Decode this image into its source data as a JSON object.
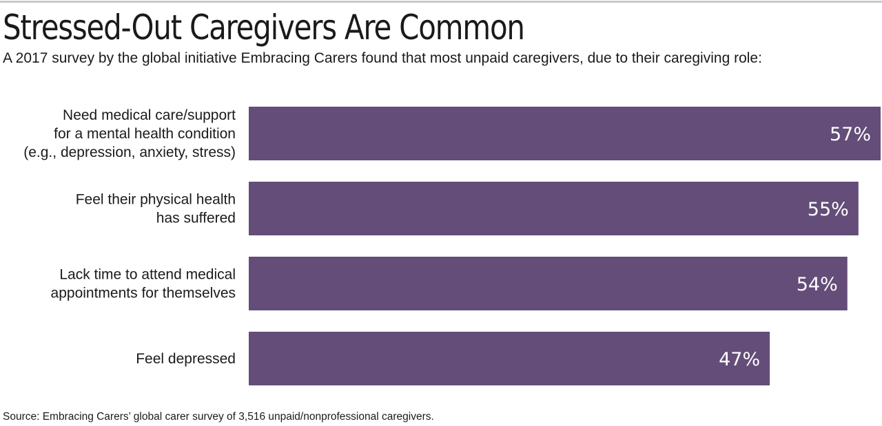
{
  "title": "Stressed-Out Caregivers Are Common",
  "subtitle": "A 2017 survey by the global initiative Embracing Carers found that most unpaid caregivers, due to their caregiving role:",
  "source": "Source: Embracing Carers’ global carer survey of 3,516 unpaid/nonprofessional caregivers.",
  "colors": {
    "bar": "#644d78",
    "value_text": "#ffffff",
    "top_rule": "#c9c9c9"
  },
  "chart_data": {
    "type": "bar",
    "orientation": "horizontal",
    "categories": [
      [
        "Need medical care/support",
        "for a mental health condition",
        "(e.g., depression, anxiety, stress)"
      ],
      [
        "Feel their physical health",
        "has suffered"
      ],
      [
        "Lack time to attend medical",
        "appointments for themselves"
      ],
      [
        "Feel depressed"
      ]
    ],
    "values": [
      57,
      55,
      54,
      47
    ],
    "value_labels": [
      "57%",
      "55%",
      "54%",
      "47%"
    ],
    "unit": "%",
    "xlim": [
      0,
      57
    ],
    "grid": false,
    "legend": "none"
  }
}
